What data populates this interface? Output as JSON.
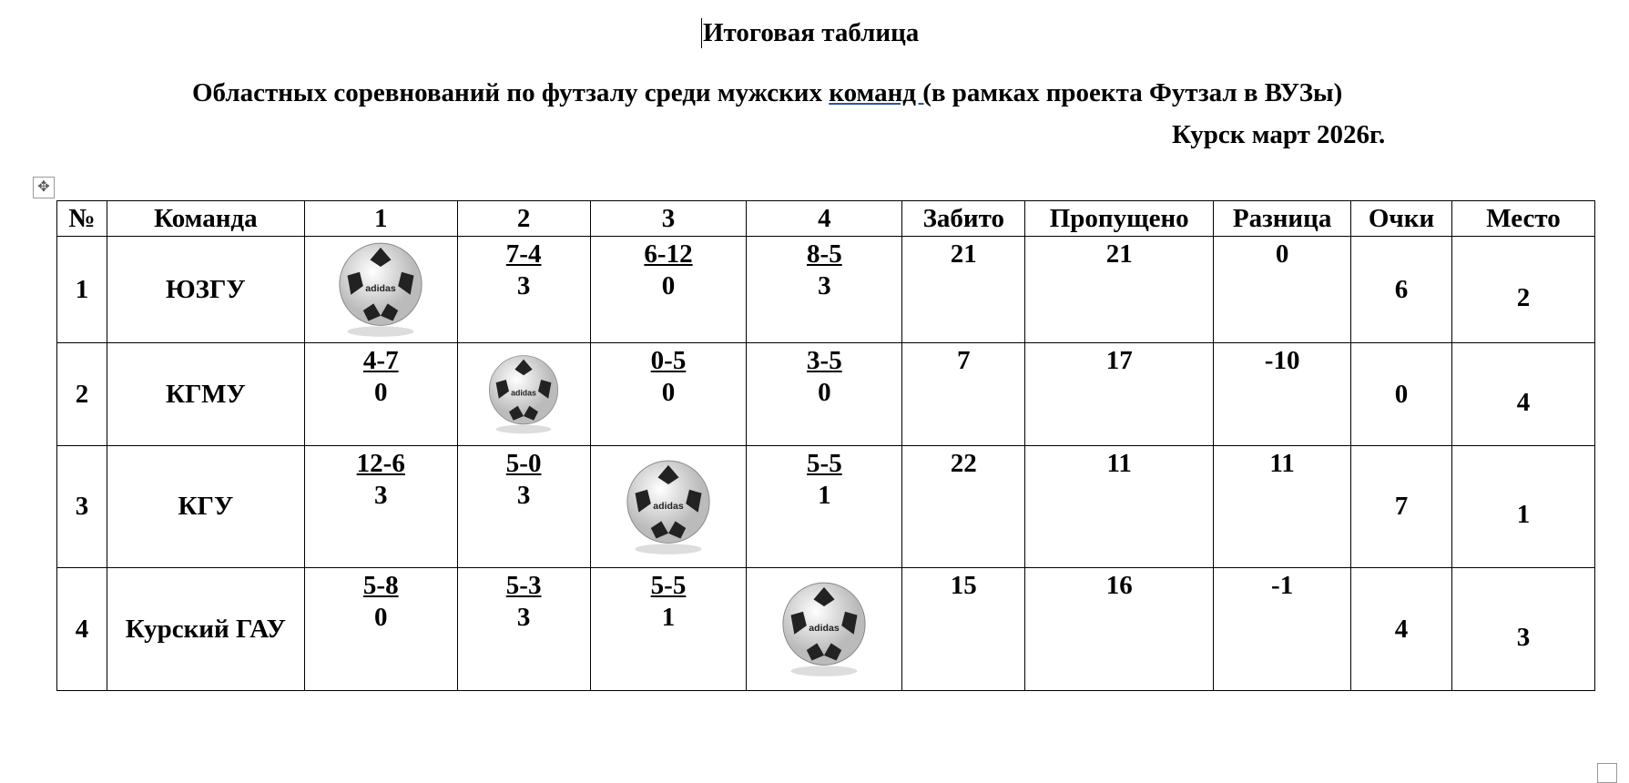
{
  "title": "Итоговая таблица",
  "subtitle_a": "Областных соревнований по футзалу среди мужских ",
  "subtitle_u": "команд  (",
  "subtitle_b": "в рамках проекта Футзал в ВУЗы)",
  "city_date": "Курск март 2026г.",
  "headers": [
    "№",
    "Команда",
    "1",
    "2",
    "3",
    "4",
    "Забито",
    "Пропущено",
    "Разница",
    "Очки",
    "Место"
  ],
  "rows": [
    {
      "n": "1",
      "team": "ЮЗГУ",
      "cells": [
        null,
        {
          "s": "7-4",
          "p": "3"
        },
        {
          "s": "6-12",
          "p": "0"
        },
        {
          "s": "8-5",
          "p": "3"
        }
      ],
      "scored": "21",
      "conceded": "21",
      "diff": "0",
      "points": "6",
      "place": "2"
    },
    {
      "n": "2",
      "team": "КГМУ",
      "cells": [
        {
          "s": "4-7",
          "p": "0"
        },
        null,
        {
          "s": "0-5",
          "p": "0"
        },
        {
          "s": "3-5",
          "p": "0"
        }
      ],
      "scored": "7",
      "conceded": "17",
      "diff": "-10",
      "points": "0",
      "place": "4"
    },
    {
      "n": "3",
      "team": "КГУ",
      "cells": [
        {
          "s": "12-6",
          "p": "3"
        },
        {
          "s": "5-0",
          "p": "3"
        },
        null,
        {
          "s": "5-5",
          "p": "1"
        }
      ],
      "scored": "22",
      "conceded": "11",
      "diff": "11",
      "points": "7",
      "place": "1"
    },
    {
      "n": "4",
      "team": "Курский ГАУ",
      "cells": [
        {
          "s": "5-8",
          "p": "0"
        },
        {
          "s": "5-3",
          "p": "3"
        },
        {
          "s": "5-5",
          "p": "1"
        },
        null
      ],
      "scored": "15",
      "conceded": "16",
      "diff": "-1",
      "points": "4",
      "place": "3"
    }
  ],
  "ball_logo": "adidas"
}
